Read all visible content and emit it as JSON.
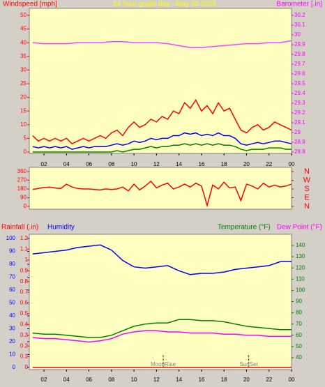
{
  "chart_data": [
    {
      "type": "line",
      "title": "24 hour graph day - May 03 2025",
      "ylabel": "Windspeed [mph]",
      "y2label": "Barometer [.in]",
      "ycolor": "#ff0000",
      "y2color": "#ff00ff",
      "titlecolor": "#ffff00",
      "xlim": [
        0.7,
        24
      ],
      "xticks": [
        {
          "value": 2,
          "label": "02"
        },
        {
          "value": 4,
          "label": "04"
        },
        {
          "value": 6,
          "label": "06"
        },
        {
          "value": 8,
          "label": "08"
        },
        10,
        12,
        14,
        16,
        18,
        20,
        22,
        {
          "value": 24,
          "label": "00"
        }
      ],
      "ylim": [
        0,
        50
      ],
      "yticks": [
        0,
        5,
        10,
        15,
        20,
        25,
        30,
        35,
        40,
        45,
        50
      ],
      "y2lim": [
        28.8,
        30.2
      ],
      "y2ticks": [
        28.8,
        28.9,
        {
          "value": 29,
          "label": "29"
        },
        29.1,
        29.2,
        29.3,
        29.4,
        29.5,
        29.6,
        29.7,
        29.8,
        29.9,
        {
          "value": 30,
          "label": "30"
        },
        30.1,
        30.2
      ],
      "x": [
        1,
        1.5,
        2,
        2.5,
        3,
        3.5,
        4,
        4.5,
        5,
        5.5,
        6,
        6.5,
        7,
        7.5,
        8,
        8.5,
        9,
        9.5,
        10,
        10.5,
        11,
        11.5,
        12,
        12.5,
        13,
        13.5,
        14,
        14.5,
        15,
        15.5,
        16,
        16.5,
        17,
        17.5,
        18,
        18.5,
        19,
        19.5,
        20,
        20.5,
        21,
        21.5,
        22,
        22.5,
        23,
        23.5,
        24
      ],
      "series": [
        {
          "color": "#ff0000",
          "values": [
            6,
            4,
            5,
            4,
            5,
            4,
            5,
            3,
            4,
            5,
            4,
            5,
            6,
            5,
            7,
            8,
            6,
            9,
            11,
            9,
            10,
            12,
            11,
            13,
            12,
            15,
            14,
            18,
            16,
            19,
            15,
            17,
            14,
            18,
            15,
            16,
            12,
            8,
            7,
            9,
            10,
            8,
            9,
            11,
            10,
            9,
            8
          ]
        },
        {
          "color": "#0000ff",
          "values": [
            2,
            1.5,
            2,
            1.5,
            2,
            1.5,
            2,
            1,
            1.5,
            2,
            1.5,
            2,
            2,
            2,
            2.5,
            3,
            2.5,
            3,
            4,
            3.5,
            4,
            5,
            4.5,
            5,
            5,
            6,
            6,
            7,
            6.5,
            7,
            6,
            6.5,
            6,
            7,
            6,
            6,
            5,
            3,
            2.5,
            3,
            3.5,
            3,
            3.5,
            4,
            4,
            3.5,
            3
          ]
        },
        {
          "color": "#008000",
          "values": [
            0,
            0,
            0,
            0,
            0,
            0,
            0,
            0,
            0,
            0,
            0,
            0,
            0,
            0,
            0,
            0.5,
            0,
            0.5,
            1,
            1,
            1.5,
            2,
            1.5,
            2,
            2,
            2.5,
            2.5,
            3,
            2.5,
            3,
            2.5,
            3,
            2.5,
            3,
            2.5,
            2.5,
            2,
            1,
            0.5,
            1,
            1,
            1,
            1.5,
            1.5,
            1.5,
            1,
            1
          ]
        },
        {
          "color": "#ff40ff",
          "axis": "y2",
          "x": [
            1,
            2,
            3,
            4,
            5,
            6,
            7,
            8,
            9,
            10,
            11,
            12,
            13,
            14,
            15,
            16,
            17,
            18,
            19,
            20,
            21,
            22,
            23,
            24
          ],
          "values": [
            29.92,
            29.91,
            29.91,
            29.91,
            29.92,
            29.92,
            29.92,
            29.93,
            29.93,
            29.92,
            29.92,
            29.92,
            29.91,
            29.89,
            29.87,
            29.87,
            29.88,
            29.89,
            29.9,
            29.91,
            29.91,
            29.92,
            29.92,
            29.94
          ]
        }
      ]
    },
    {
      "type": "line",
      "ycolor": "#ff0000",
      "y2color": "#ff0000",
      "xlim": [
        0.7,
        24
      ],
      "ylim": [
        0,
        360
      ],
      "yticks": [
        0,
        90,
        180,
        270,
        360
      ],
      "y2lim": [
        0,
        360
      ],
      "y2ticks": [
        {
          "value": 0,
          "label": "N"
        },
        {
          "value": 90,
          "label": "E"
        },
        {
          "value": 180,
          "label": "S"
        },
        {
          "value": 270,
          "label": "W"
        },
        {
          "value": 360,
          "label": "N"
        }
      ],
      "x": [
        1,
        1.5,
        2,
        2.5,
        3,
        3.5,
        4,
        4.5,
        5,
        5.5,
        6,
        6.5,
        7,
        7.5,
        8,
        8.5,
        9,
        9.5,
        10,
        10.5,
        11,
        11.5,
        12,
        12.5,
        13,
        13.5,
        14,
        14.5,
        15,
        15.5,
        16,
        16.5,
        17,
        17.5,
        18,
        18.5,
        19,
        19.5,
        20,
        20.5,
        21,
        21.5,
        22,
        22.5,
        23,
        23.5,
        24
      ],
      "series": [
        {
          "color": "#ff0000",
          "values": [
            175,
            185,
            195,
            200,
            190,
            185,
            230,
            200,
            185,
            180,
            180,
            175,
            170,
            180,
            175,
            180,
            200,
            160,
            230,
            170,
            210,
            260,
            190,
            220,
            240,
            180,
            200,
            230,
            200,
            240,
            210,
            10,
            220,
            180,
            250,
            190,
            200,
            60,
            230,
            210,
            180,
            240,
            200,
            220,
            200,
            210,
            230
          ]
        }
      ]
    },
    {
      "type": "line",
      "ycolor": "#ff0000",
      "y3color": "#0000ff",
      "y2color": "#008000",
      "xlim": [
        0.7,
        24
      ],
      "xticks": [
        {
          "value": 2,
          "label": "02"
        },
        {
          "value": 4,
          "label": "04"
        },
        {
          "value": 6,
          "label": "06"
        },
        {
          "value": 8,
          "label": "08"
        },
        10,
        12,
        14,
        16,
        18,
        20,
        22,
        {
          "value": 24,
          "label": "00"
        }
      ],
      "ylim": [
        0,
        1.2
      ],
      "yticks": [
        0,
        0.1,
        0.2,
        0.3,
        0.4,
        0.5,
        0.6,
        0.7,
        0.8,
        0.9,
        1,
        1.1,
        1.2
      ],
      "y3lim": [
        0,
        100
      ],
      "y3ticks": [
        0,
        10,
        20,
        30,
        40,
        50,
        60,
        70,
        80,
        90,
        100
      ],
      "y2lim": [
        31.3,
        146.2
      ],
      "y2ticks": [
        40,
        50,
        60,
        70,
        80,
        90,
        100,
        110,
        120,
        130,
        140
      ],
      "x": [
        1,
        2,
        3,
        4,
        5,
        6,
        7,
        8,
        9,
        10,
        11,
        12,
        13,
        14,
        15,
        16,
        17,
        18,
        19,
        20,
        21,
        22,
        23,
        24
      ],
      "events": [
        {
          "label": "MoonRise",
          "x": 12.6
        },
        {
          "label": "SunSet",
          "x": 20.2
        }
      ],
      "series": [
        {
          "name": "Rainfall (.in)",
          "color": "#ff0000",
          "values": [
            0,
            0,
            0,
            0,
            0,
            0,
            0,
            0,
            0,
            0,
            0,
            0,
            0,
            0,
            0,
            0,
            0,
            0,
            0,
            0,
            0,
            0,
            0,
            0
          ]
        },
        {
          "name": "Humidity",
          "color": "#0000ff",
          "axis": "y3",
          "values": [
            88,
            89,
            90,
            91,
            93,
            94,
            95,
            91,
            83,
            78,
            77,
            78,
            79,
            75,
            72,
            73,
            73,
            74,
            76,
            77,
            78,
            79,
            82,
            82
          ]
        },
        {
          "name": "Temperature (°F)",
          "color": "#008000",
          "axis": "y2",
          "values": [
            62,
            61,
            61,
            60,
            59,
            58,
            58,
            60,
            64,
            68,
            70,
            71,
            71,
            74,
            74,
            73,
            73,
            72,
            70,
            68,
            67,
            66,
            65,
            65
          ]
        },
        {
          "name": "Dew Point (°F)",
          "color": "#ff00ff",
          "axis": "y2",
          "values": [
            58,
            57,
            57,
            56,
            55,
            54,
            55,
            57,
            61,
            63,
            64,
            64,
            63,
            63,
            62,
            62,
            62,
            61,
            61,
            60,
            60,
            59,
            59,
            59
          ]
        }
      ]
    }
  ]
}
